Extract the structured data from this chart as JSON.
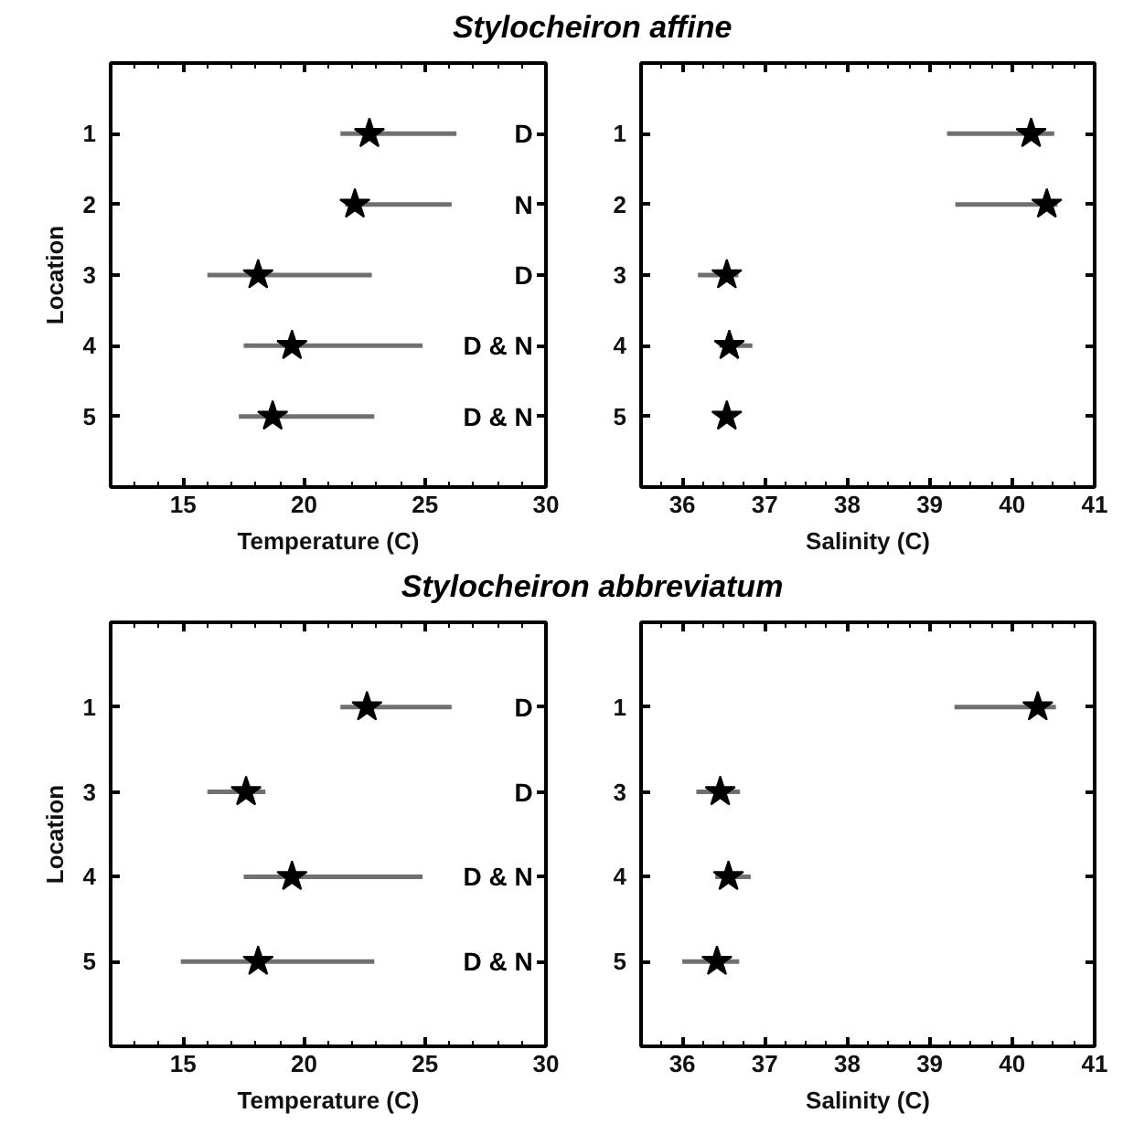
{
  "chart_data": [
    {
      "type": "scatter",
      "title": "Stylocheiron affine",
      "orientation": "horizontal",
      "categories": [
        "1",
        "2",
        "3",
        "4",
        "5"
      ],
      "xlabel": "Temperature (C)",
      "ylabel": "Location",
      "xlim": [
        12,
        30
      ],
      "xticks": [
        15,
        20,
        25,
        30
      ],
      "marker": "star",
      "grid": false,
      "series": [
        {
          "color": "#000000",
          "values": [
            22.7,
            22.1,
            18.1,
            19.5,
            18.7
          ],
          "errors": [
            [
              21.5,
              26.3
            ],
            [
              21.7,
              26.1
            ],
            [
              16.0,
              22.8
            ],
            [
              17.5,
              24.9
            ],
            [
              17.3,
              22.9
            ]
          ]
        }
      ],
      "annotations": [
        "D",
        "N",
        "D",
        "D & N",
        "D & N"
      ]
    },
    {
      "type": "scatter",
      "orientation": "horizontal",
      "categories": [
        "1",
        "2",
        "3",
        "4",
        "5"
      ],
      "xlabel": "Salinity (C)",
      "xlim": [
        35.5,
        41
      ],
      "xticks": [
        36,
        37,
        38,
        39,
        40,
        41
      ],
      "marker": "star",
      "grid": false,
      "series": [
        {
          "color": "#000000",
          "values": [
            40.23,
            40.42,
            36.54,
            36.57,
            36.54
          ],
          "errors": [
            [
              39.21,
              40.51
            ],
            [
              39.31,
              40.55
            ],
            [
              36.19,
              36.68
            ],
            [
              36.45,
              36.85
            ],
            null
          ]
        }
      ]
    },
    {
      "type": "scatter",
      "title": "Stylocheiron abbreviatum",
      "orientation": "horizontal",
      "categories": [
        "1",
        "3",
        "4",
        "5"
      ],
      "xlabel": "Temperature (C)",
      "ylabel": "Location",
      "xlim": [
        12,
        30
      ],
      "xticks": [
        15,
        20,
        25,
        30
      ],
      "marker": "star",
      "grid": false,
      "series": [
        {
          "color": "#000000",
          "values": [
            22.6,
            17.6,
            19.5,
            18.1
          ],
          "errors": [
            [
              21.5,
              26.1
            ],
            [
              16.0,
              18.4
            ],
            [
              17.5,
              24.9
            ],
            [
              14.9,
              22.9
            ]
          ]
        }
      ],
      "annotations": [
        "D",
        "D",
        "D & N",
        "D & N"
      ]
    },
    {
      "type": "scatter",
      "orientation": "horizontal",
      "categories": [
        "1",
        "3",
        "4",
        "5"
      ],
      "xlabel": "Salinity (C)",
      "xlim": [
        35.5,
        41
      ],
      "xticks": [
        36,
        37,
        38,
        39,
        40,
        41
      ],
      "marker": "star",
      "grid": false,
      "series": [
        {
          "color": "#000000",
          "values": [
            40.31,
            36.46,
            36.56,
            36.42
          ],
          "errors": [
            [
              39.3,
              40.53
            ],
            [
              36.17,
              36.7
            ],
            [
              36.4,
              36.83
            ],
            [
              36.0,
              36.69
            ]
          ]
        }
      ]
    }
  ]
}
